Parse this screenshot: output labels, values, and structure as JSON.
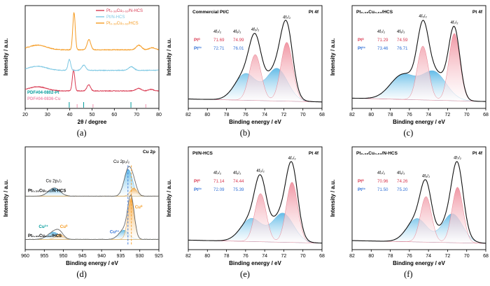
{
  "palette": {
    "red": "#d93a52",
    "red_fill": "#f0919f",
    "blue": "#2f6fd6",
    "blue_fill": "#5bb8e6",
    "light_blue": "#7ec8e3",
    "orange": "#f59b22",
    "orange_fill": "#f6a63b",
    "teal": "#009b9b",
    "pink": "#ef8fae",
    "envelope": "#111111",
    "trace": "#666666"
  },
  "chart_data": [
    {
      "kind": "xrd",
      "panel_label": "(a)",
      "type": "line",
      "xlabel": "2θ / degree",
      "ylabel": "Intensity / a.u.",
      "xlim": [
        20,
        80
      ],
      "xticks": [
        20,
        30,
        40,
        50,
        60,
        70,
        80
      ],
      "series": [
        {
          "name": "Pt₀.₃₈Cu₀.₆₂/N-HCS",
          "color": "#d93a52",
          "offset": 0.17,
          "peaks": [
            {
              "c": 25.5,
              "w": 4.0,
              "h": 0.04
            },
            {
              "c": 41.7,
              "w": 0.55,
              "h": 0.2
            },
            {
              "c": 48.5,
              "w": 0.8,
              "h": 0.06
            },
            {
              "c": 70.9,
              "w": 1.2,
              "h": 0.025
            },
            {
              "c": 76.5,
              "w": 1.2,
              "h": 0.015
            }
          ]
        },
        {
          "name": "Pt/N-HCS",
          "color": "#7ec8e3",
          "offset": 0.37,
          "peaks": [
            {
              "c": 25.5,
              "w": 4.0,
              "h": 0.04
            },
            {
              "c": 39.8,
              "w": 0.6,
              "h": 0.105
            },
            {
              "c": 46.3,
              "w": 0.9,
              "h": 0.05
            },
            {
              "c": 67.6,
              "w": 1.2,
              "h": 0.035
            },
            {
              "c": 81.3,
              "w": 1.0,
              "h": 0.02
            }
          ]
        },
        {
          "name": "Pt₀.₃₈Cu₀.₆₂/HCS",
          "color": "#f59b22",
          "offset": 0.57,
          "peaks": [
            {
              "c": 25.5,
              "w": 4.0,
              "h": 0.045
            },
            {
              "c": 41.9,
              "w": 0.55,
              "h": 0.36
            },
            {
              "c": 48.6,
              "w": 0.8,
              "h": 0.1
            },
            {
              "c": 71.0,
              "w": 1.2,
              "h": 0.045
            },
            {
              "c": 77.0,
              "w": 1.3,
              "h": 0.02
            }
          ]
        }
      ],
      "references": [
        {
          "label": "PDF#04-0802-Pt",
          "color": "#009b9b",
          "positions": [
            39.76,
            46.24,
            67.45,
            81.28
          ]
        },
        {
          "label": "PDF#04-0836-Cu",
          "color": "#ef8fae",
          "positions": [
            43.3,
            50.43,
            74.13
          ]
        }
      ]
    },
    {
      "kind": "pt4f",
      "panel_label": "(b)",
      "type": "area",
      "sample": "Commercial Pt/C",
      "region": "Pt 4f",
      "xlabel": "Binding energy / eV",
      "ylabel": "Intensity / a.u.",
      "xlim": [
        82,
        68
      ],
      "xticks": [
        82,
        80,
        78,
        76,
        74,
        72,
        70,
        68
      ],
      "peak_labels": [
        "4f₇/₂",
        "4f₅/₂"
      ],
      "table_headers": [
        "4f₇/₂",
        "4f₅/₂"
      ],
      "species": [
        {
          "name": "Pt⁰",
          "values": [
            "71.69",
            "74.99"
          ],
          "centers": [
            71.69,
            74.99
          ],
          "heights": [
            1.0,
            0.78
          ],
          "width": 0.62,
          "color_key": "red"
        },
        {
          "name": "Pt²⁺",
          "values": [
            "72.71",
            "76.01"
          ],
          "centers": [
            72.71,
            76.01
          ],
          "heights": [
            0.55,
            0.45
          ],
          "width": 1.1,
          "color_key": "blue"
        }
      ]
    },
    {
      "kind": "pt4f",
      "panel_label": "(c)",
      "type": "area",
      "sample": "Pt₀.₃₈Cu₀.₆₂/HCS",
      "region": "Pt 4f",
      "xlabel": "Binding energy / eV",
      "ylabel": "Intensity / a.u.",
      "xlim": [
        82,
        68
      ],
      "xticks": [
        82,
        80,
        78,
        76,
        74,
        72,
        70,
        68
      ],
      "peak_labels": [
        "4f₇/₂",
        "4f₅/₂"
      ],
      "table_headers": [
        "4f₇/₂",
        "4f₅/₂"
      ],
      "species": [
        {
          "name": "Pt⁰",
          "values": [
            "71.29",
            "74.59"
          ],
          "centers": [
            71.29,
            74.59
          ],
          "heights": [
            1.0,
            0.8
          ],
          "width": 0.58,
          "color_key": "red"
        },
        {
          "name": "Pt²⁺",
          "values": [
            "73.46",
            "76.71"
          ],
          "centers": [
            73.46,
            76.71
          ],
          "heights": [
            0.42,
            0.36
          ],
          "width": 1.3,
          "color_key": "blue"
        }
      ]
    },
    {
      "kind": "cu2p",
      "panel_label": "(d)",
      "type": "area",
      "region": "Cu 2p",
      "xlabel": "Binding energy / eV",
      "ylabel": "Intensity / a.u.",
      "xlim": [
        960,
        925
      ],
      "xticks": [
        960,
        955,
        950,
        945,
        940,
        935,
        930,
        925
      ],
      "traces": [
        {
          "name": "Pt₀.₃₈Cu₀.₆₂/N-HCS",
          "offset": 0.52,
          "components": [
            {
              "c": 952.4,
              "w": 1.5,
              "h": 0.08,
              "color_key": "blue"
            },
            {
              "c": 933.0,
              "w": 1.1,
              "h": 0.26,
              "color_key": "blue"
            },
            {
              "c": 931.6,
              "w": 0.9,
              "h": 0.08,
              "color_key": "orange"
            }
          ]
        },
        {
          "name": "Pt₀.₃₈Cu₀.₆₂/HCS",
          "offset": 0.1,
          "components": [
            {
              "c": 952.6,
              "w": 1.5,
              "h": 0.07,
              "color_key": "blue"
            },
            {
              "c": 951.0,
              "w": 1.0,
              "h": 0.05,
              "color_key": "orange"
            },
            {
              "c": 934.2,
              "w": 1.3,
              "h": 0.09,
              "color_key": "blue"
            },
            {
              "c": 932.3,
              "w": 0.85,
              "h": 0.4,
              "color_key": "orange"
            }
          ]
        }
      ],
      "dashed_lines": [
        {
          "x": 933.1,
          "color": "#2f6fd6"
        },
        {
          "x": 932.2,
          "color": "#f59b22"
        }
      ],
      "peak_labels": [
        {
          "text": "Cu 2p₁/₂",
          "x": 952.5,
          "y": 0.655
        },
        {
          "text": "Cu 2p₃/₂",
          "x": 934.8,
          "y": 0.845
        }
      ],
      "species_labels": [
        {
          "text": "Cu²⁺",
          "x": 955.2,
          "y": 0.21,
          "color": "#009b9b"
        },
        {
          "text": "Cu⁰",
          "x": 949.9,
          "y": 0.21,
          "color": "#f59b22"
        },
        {
          "text": "Cu²⁺",
          "x": 936.6,
          "y": 0.16,
          "color": "#2f6fd6"
        },
        {
          "text": "Cu⁰",
          "x": 930.3,
          "y": 0.4,
          "color": "#f59b22"
        }
      ]
    },
    {
      "kind": "pt4f",
      "panel_label": "(e)",
      "type": "area",
      "sample": "Pt/N-HCS",
      "region": "Pt 4f",
      "xlabel": "Binding energy / eV",
      "ylabel": "Intensity / a.u.",
      "xlim": [
        82,
        68
      ],
      "xticks": [
        82,
        80,
        78,
        76,
        74,
        72,
        70,
        68
      ],
      "peak_labels": [
        "4f₇/₂",
        "4f₅/₂"
      ],
      "table_headers": [
        "4f₇/₂",
        "4f₅/₂"
      ],
      "species": [
        {
          "name": "Pt⁰",
          "values": [
            "71.14",
            "74.44"
          ],
          "centers": [
            71.14,
            74.44
          ],
          "heights": [
            1.0,
            0.8
          ],
          "width": 0.6,
          "color_key": "red"
        },
        {
          "name": "Pt²⁺",
          "values": [
            "72.09",
            "75.39"
          ],
          "centers": [
            72.09,
            75.39
          ],
          "heights": [
            0.48,
            0.38
          ],
          "width": 1.1,
          "color_key": "blue"
        }
      ]
    },
    {
      "kind": "pt4f",
      "panel_label": "(f)",
      "type": "area",
      "sample": "Pt₀.₃₈Cu₀.₆₂/N-HCS",
      "region": "Pt 4f",
      "xlabel": "Binding energy / eV",
      "ylabel": "Intensity / a.u.",
      "xlim": [
        82,
        68
      ],
      "xticks": [
        82,
        80,
        78,
        76,
        74,
        72,
        70,
        68
      ],
      "peak_labels": [
        "4f₇/₂",
        "4f₅/₂"
      ],
      "table_headers": [
        "4f₇/₂",
        "4f₅/₂"
      ],
      "species": [
        {
          "name": "Pt⁰",
          "values": [
            "70.96",
            "74.26"
          ],
          "centers": [
            70.96,
            74.26
          ],
          "heights": [
            1.0,
            0.82
          ],
          "width": 0.58,
          "color_key": "red"
        },
        {
          "name": "Pt²⁺",
          "values": [
            "71.50",
            "75.20"
          ],
          "centers": [
            71.5,
            75.2
          ],
          "heights": [
            0.52,
            0.42
          ],
          "width": 1.05,
          "color_key": "blue"
        }
      ]
    }
  ]
}
